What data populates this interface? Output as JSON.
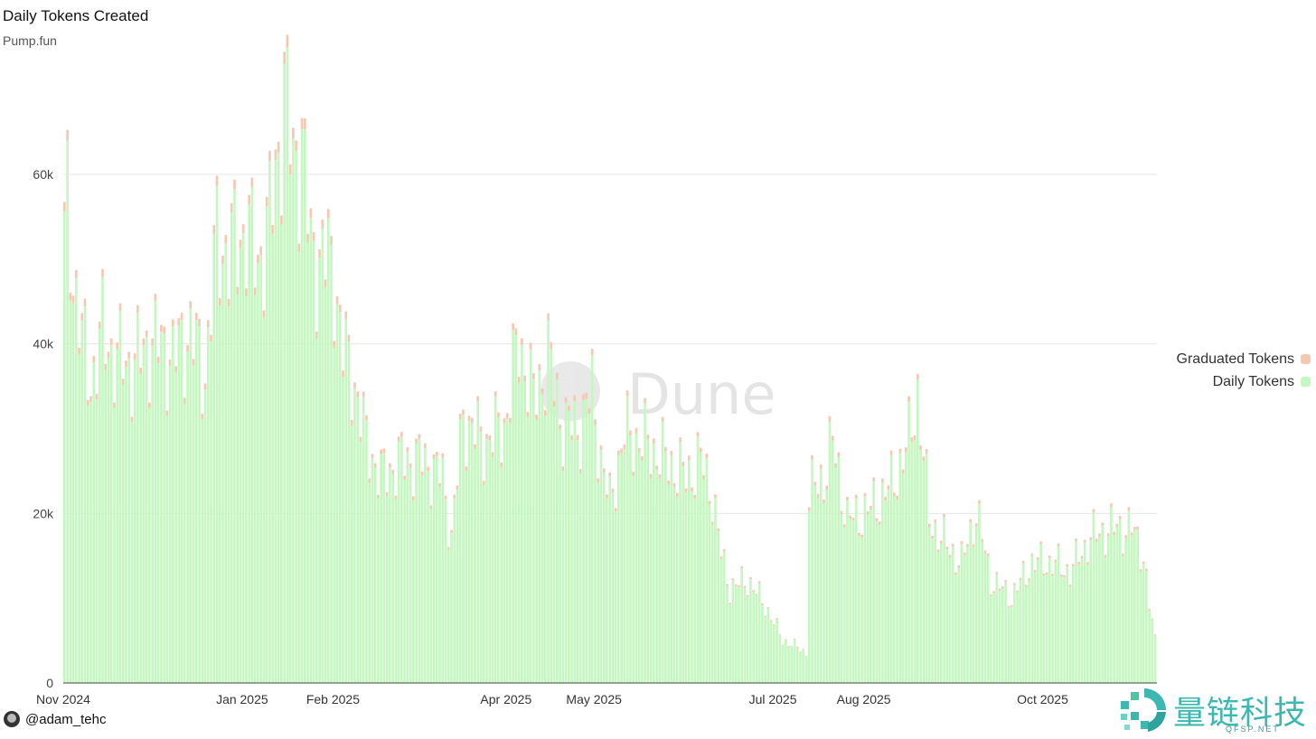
{
  "header": {
    "title": "Daily Tokens Created",
    "subtitle": "Pump.fun"
  },
  "legend": {
    "items": [
      {
        "label": "Graduated Tokens",
        "color": "#f6c7b1"
      },
      {
        "label": "Daily Tokens",
        "color": "#c5f8c1"
      }
    ]
  },
  "author": {
    "handle": "@adam_tehc"
  },
  "watermark": {
    "text": "Dune"
  },
  "brand": {
    "name": "量链科技",
    "domain": "QFSP.NET"
  },
  "chart_data": {
    "type": "bar",
    "stacked": true,
    "y_ticks": [
      "0",
      "20k",
      "40k",
      "60k"
    ],
    "ylim": [
      0,
      60000
    ],
    "grid": true,
    "legend_position": "right",
    "x_ticks": [
      "Nov 2024",
      "Jan 2025",
      "Feb 2025",
      "Apr 2025",
      "May 2025",
      "Jul 2025",
      "Aug 2025",
      "Oct 2025"
    ],
    "x_tick_dates": [
      "2024-11-01",
      "2025-01-01",
      "2025-02-01",
      "2025-04-01",
      "2025-05-01",
      "2025-07-01",
      "2025-08-01",
      "2025-10-01"
    ],
    "x_range": [
      "2024-11-01",
      "2025-11-08"
    ],
    "daily_anchors": [
      [
        "2024-11-01",
        52000
      ],
      [
        "2024-11-02",
        56000
      ],
      [
        "2024-11-04",
        48000
      ],
      [
        "2024-11-07",
        40000
      ],
      [
        "2024-11-10",
        35000
      ],
      [
        "2024-11-14",
        41000
      ],
      [
        "2024-11-18",
        38000
      ],
      [
        "2024-11-24",
        37000
      ],
      [
        "2024-12-01",
        40000
      ],
      [
        "2024-12-08",
        38000
      ],
      [
        "2024-12-14",
        41000
      ],
      [
        "2024-12-19",
        36000
      ],
      [
        "2024-12-23",
        52000
      ],
      [
        "2024-12-27",
        50000
      ],
      [
        "2025-01-02",
        53000
      ],
      [
        "2025-01-06",
        49000
      ],
      [
        "2025-01-10",
        54000
      ],
      [
        "2025-01-13",
        62000
      ],
      [
        "2025-01-15",
        70000
      ],
      [
        "2025-01-18",
        60000
      ],
      [
        "2025-01-21",
        64000
      ],
      [
        "2025-01-24",
        50000
      ],
      [
        "2025-01-28",
        50000
      ],
      [
        "2025-02-01",
        48000
      ],
      [
        "2025-02-04",
        39000
      ],
      [
        "2025-02-08",
        35000
      ],
      [
        "2025-02-12",
        28000
      ],
      [
        "2025-02-17",
        24000
      ],
      [
        "2025-02-24",
        26000
      ],
      [
        "2025-03-03",
        26000
      ],
      [
        "2025-03-10",
        24000
      ],
      [
        "2025-03-13",
        17000
      ],
      [
        "2025-03-17",
        31000
      ],
      [
        "2025-03-24",
        28000
      ],
      [
        "2025-03-31",
        30000
      ],
      [
        "2025-04-05",
        40000
      ],
      [
        "2025-04-10",
        33000
      ],
      [
        "2025-04-15",
        38000
      ],
      [
        "2025-04-20",
        30000
      ],
      [
        "2025-04-26",
        30000
      ],
      [
        "2025-04-30",
        34000
      ],
      [
        "2025-05-03",
        26000
      ],
      [
        "2025-05-06",
        21000
      ],
      [
        "2025-05-11",
        29000
      ],
      [
        "2025-05-18",
        28000
      ],
      [
        "2025-05-25",
        26000
      ],
      [
        "2025-06-01",
        24000
      ],
      [
        "2025-06-06",
        26000
      ],
      [
        "2025-06-10",
        22000
      ],
      [
        "2025-06-13",
        15000
      ],
      [
        "2025-06-16",
        11000
      ],
      [
        "2025-06-22",
        12000
      ],
      [
        "2025-06-28",
        9000
      ],
      [
        "2025-07-04",
        5000
      ],
      [
        "2025-07-10",
        4000
      ],
      [
        "2025-07-12",
        3500
      ],
      [
        "2025-07-13",
        22000
      ],
      [
        "2025-07-18",
        24000
      ],
      [
        "2025-07-21",
        28000
      ],
      [
        "2025-07-26",
        19000
      ],
      [
        "2025-08-02",
        20000
      ],
      [
        "2025-08-10",
        23000
      ],
      [
        "2025-08-16",
        28000
      ],
      [
        "2025-08-19",
        34000
      ],
      [
        "2025-08-23",
        19000
      ],
      [
        "2025-08-29",
        16000
      ],
      [
        "2025-09-03",
        14000
      ],
      [
        "2025-09-08",
        20000
      ],
      [
        "2025-09-13",
        12000
      ],
      [
        "2025-09-20",
        10000
      ],
      [
        "2025-09-27",
        14000
      ],
      [
        "2025-10-04",
        14000
      ],
      [
        "2025-10-10",
        13000
      ],
      [
        "2025-10-17",
        17000
      ],
      [
        "2025-10-24",
        18000
      ],
      [
        "2025-10-31",
        18000
      ],
      [
        "2025-11-04",
        15000
      ],
      [
        "2025-11-06",
        9000
      ],
      [
        "2025-11-08",
        5000
      ]
    ],
    "graduated_approx": 600
  }
}
